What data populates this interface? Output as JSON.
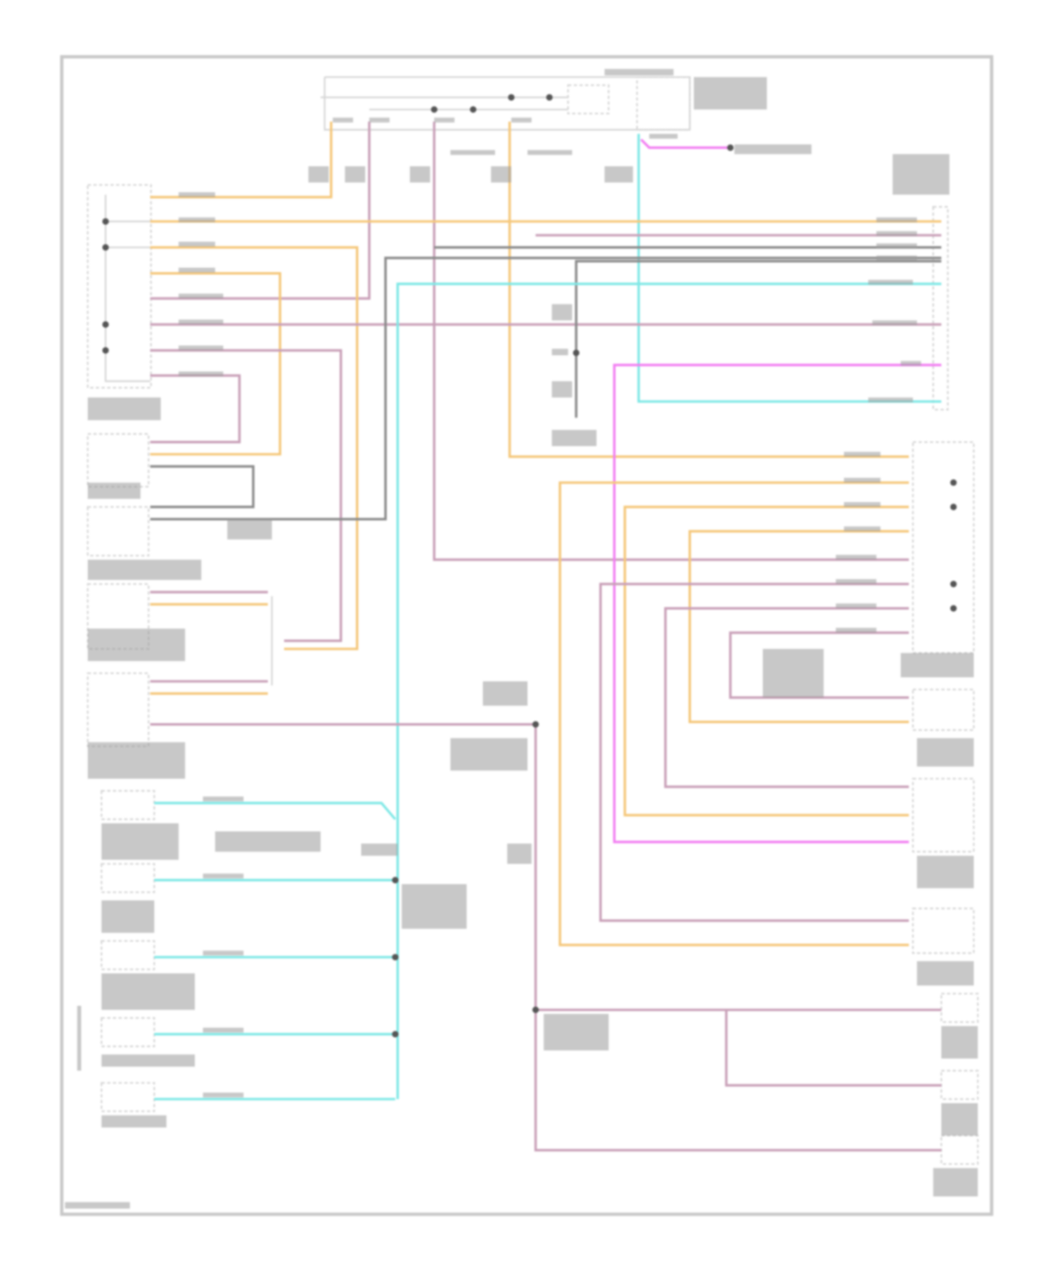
{
  "diagram": {
    "type": "wiring-schematic",
    "labels_legible": false,
    "colors": {
      "frame": "#c8c8c8",
      "module_outline": "#d6d6d6",
      "orange_wire": "#f5c77a",
      "pink_wire": "#c9a0b8",
      "gray_wire": "#8a8a8a",
      "cyan_wire": "#7fe8e6",
      "magenta_wire": "#f27ef2",
      "splice": "#555555"
    }
  }
}
